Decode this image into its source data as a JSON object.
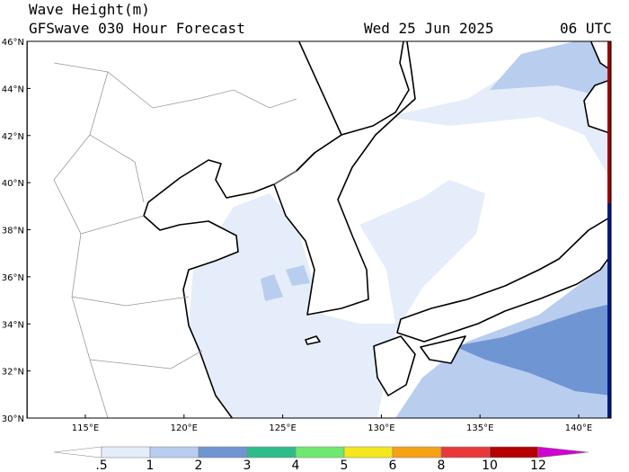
{
  "header": {
    "title": "Wave Height(m)",
    "subtitle": "GFSwave 030 Hour Forecast",
    "date": "Wed 25 Jun 2025",
    "time": "06 UTC"
  },
  "map": {
    "lat_labels": [
      "46°N",
      "44°N",
      "42°N",
      "40°N",
      "38°N",
      "36°N",
      "34°N",
      "32°N",
      "30°N"
    ],
    "lon_labels": [
      "115°E",
      "120°E",
      "125°E",
      "130°E",
      "135°E",
      "140°E"
    ]
  },
  "colorbar": {
    "labels": [
      ".5",
      "1",
      "2",
      "3",
      "4",
      "5",
      "6",
      "8",
      "10",
      "12"
    ],
    "colors": [
      "#ffffff",
      "#e4edf9",
      "#b9cdef",
      "#6f95d2",
      "#2ebd8a",
      "#6ee86e",
      "#f5e61e",
      "#f5a214",
      "#e8383c",
      "#b40000",
      "#d000d0"
    ]
  }
}
